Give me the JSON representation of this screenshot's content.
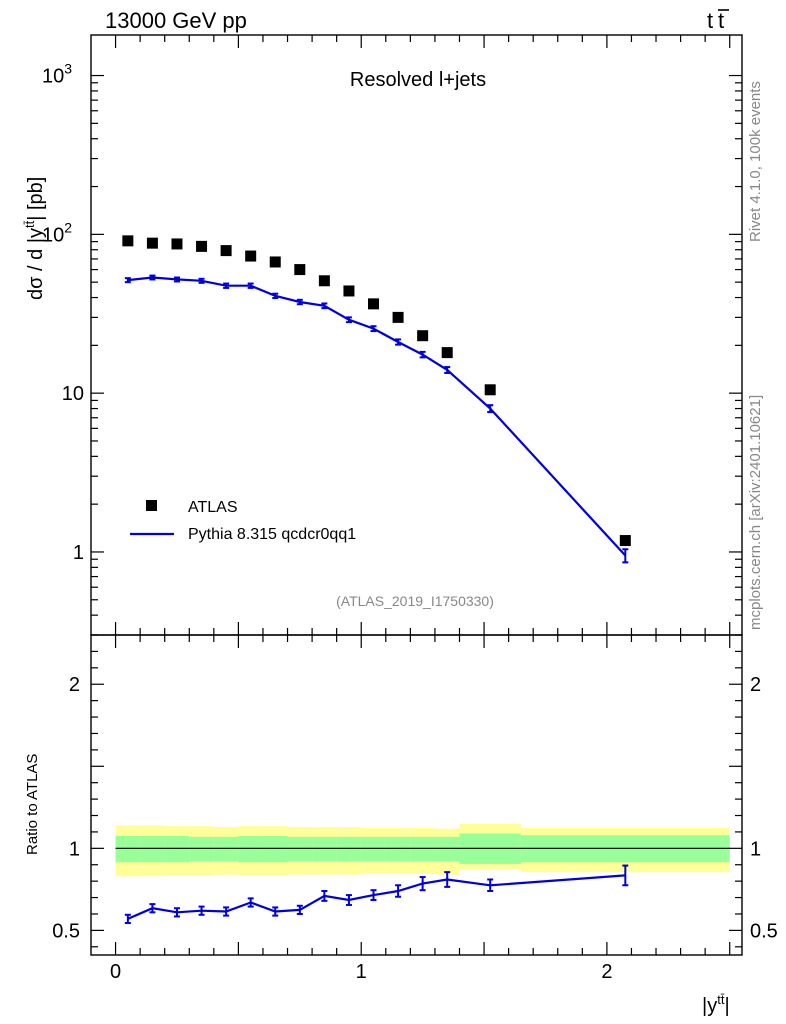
{
  "header": {
    "left": "13000 GeV pp",
    "right_base": "t",
    "right_bar": "t"
  },
  "side": {
    "rivet": "Rivet 4.1.0,  100k events",
    "mcplots": "mcplots.cern.ch [arXiv:2401.10621]"
  },
  "chart_data": [
    {
      "type": "scatter",
      "title": "Resolved l+jets",
      "watermark": "(ATLAS_2019_I1750330)",
      "ylabel": {
        "pre": "dσ / d |y",
        "sup": "tt̄",
        "post": "| [pb]"
      },
      "xlabel": {
        "pre": "|y",
        "sup": "tt̄",
        "post": "|"
      },
      "yscale": "log",
      "ylim": [
        0.3,
        1800
      ],
      "xlim": [
        -0.1,
        2.55
      ],
      "y_ticks": [
        {
          "value": 1,
          "label": "1"
        },
        {
          "value": 10,
          "label": "10"
        },
        {
          "value": 100,
          "label": "10",
          "exp": "2"
        },
        {
          "value": 1000,
          "label": "10",
          "exp": "3"
        }
      ],
      "legend_position": "bottom-left",
      "series": [
        {
          "name": "ATLAS",
          "style": "markers",
          "color": "#000000",
          "x": [
            0.05,
            0.15,
            0.25,
            0.35,
            0.45,
            0.55,
            0.65,
            0.75,
            0.85,
            0.95,
            1.05,
            1.15,
            1.25,
            1.35,
            1.525,
            2.075
          ],
          "y": [
            91,
            88,
            87,
            84,
            79,
            73,
            67,
            60,
            51,
            44,
            36.5,
            30,
            23,
            18,
            10.5,
            1.18
          ]
        },
        {
          "name": "Pythia 8.315 qcdcr0qq1",
          "style": "line",
          "color": "#0000dd",
          "x": [
            0.05,
            0.15,
            0.25,
            0.35,
            0.45,
            0.55,
            0.65,
            0.75,
            0.85,
            0.95,
            1.05,
            1.15,
            1.25,
            1.35,
            1.525,
            2.075
          ],
          "y": [
            51.5,
            53.5,
            52,
            51,
            47.5,
            47.5,
            41,
            37.5,
            35.5,
            29,
            25.5,
            21,
            17.5,
            14,
            8,
            0.95
          ],
          "err": [
            1.5,
            1.5,
            1.5,
            1.5,
            1.5,
            1.5,
            1.3,
            1.2,
            1.2,
            1.0,
            0.9,
            0.8,
            0.7,
            0.6,
            0.4,
            0.09
          ]
        }
      ]
    },
    {
      "type": "line",
      "ylabel": "Ratio to ATLAS",
      "ylim": [
        0.35,
        2.3
      ],
      "xlim": [
        -0.1,
        2.55
      ],
      "y_ticks": [
        {
          "value": 0.5,
          "label": "0.5"
        },
        {
          "value": 1,
          "label": "1"
        },
        {
          "value": 2,
          "label": "2"
        }
      ],
      "x_ticks": [
        {
          "value": 0,
          "label": "0"
        },
        {
          "value": 1,
          "label": "1"
        },
        {
          "value": 2,
          "label": "2"
        }
      ],
      "bands": {
        "bin_edges": [
          0.0,
          0.1,
          0.2,
          0.3,
          0.4,
          0.5,
          0.6,
          0.7,
          0.8,
          0.9,
          1.0,
          1.1,
          1.2,
          1.3,
          1.4,
          1.65,
          2.5
        ],
        "stat_lo": [
          0.915,
          0.915,
          0.915,
          0.92,
          0.92,
          0.915,
          0.915,
          0.92,
          0.92,
          0.92,
          0.92,
          0.92,
          0.92,
          0.92,
          0.905,
          0.915
        ],
        "stat_hi": [
          1.075,
          1.075,
          1.075,
          1.07,
          1.07,
          1.075,
          1.075,
          1.07,
          1.07,
          1.07,
          1.07,
          1.07,
          1.07,
          1.07,
          1.09,
          1.08
        ],
        "total_lo": [
          0.83,
          0.83,
          0.835,
          0.835,
          0.84,
          0.835,
          0.835,
          0.84,
          0.84,
          0.84,
          0.845,
          0.845,
          0.845,
          0.84,
          0.87,
          0.855
        ],
        "total_hi": [
          1.14,
          1.14,
          1.135,
          1.135,
          1.13,
          1.135,
          1.135,
          1.13,
          1.13,
          1.13,
          1.125,
          1.125,
          1.125,
          1.12,
          1.15,
          1.125
        ],
        "stat_color": "#99ff99",
        "total_color": "#ffff99"
      },
      "series": [
        {
          "name": "Pythia 8.315 qcdcr0qq1 / ATLAS",
          "color": "#0000dd",
          "x": [
            0.05,
            0.15,
            0.25,
            0.35,
            0.45,
            0.55,
            0.65,
            0.75,
            0.85,
            0.95,
            1.05,
            1.15,
            1.25,
            1.35,
            1.525,
            2.075
          ],
          "y": [
            0.57,
            0.635,
            0.61,
            0.62,
            0.615,
            0.67,
            0.615,
            0.625,
            0.71,
            0.685,
            0.715,
            0.74,
            0.785,
            0.81,
            0.775,
            0.835
          ],
          "err": [
            0.025,
            0.025,
            0.025,
            0.025,
            0.025,
            0.025,
            0.025,
            0.025,
            0.03,
            0.03,
            0.03,
            0.035,
            0.04,
            0.045,
            0.035,
            0.06
          ]
        }
      ]
    }
  ]
}
